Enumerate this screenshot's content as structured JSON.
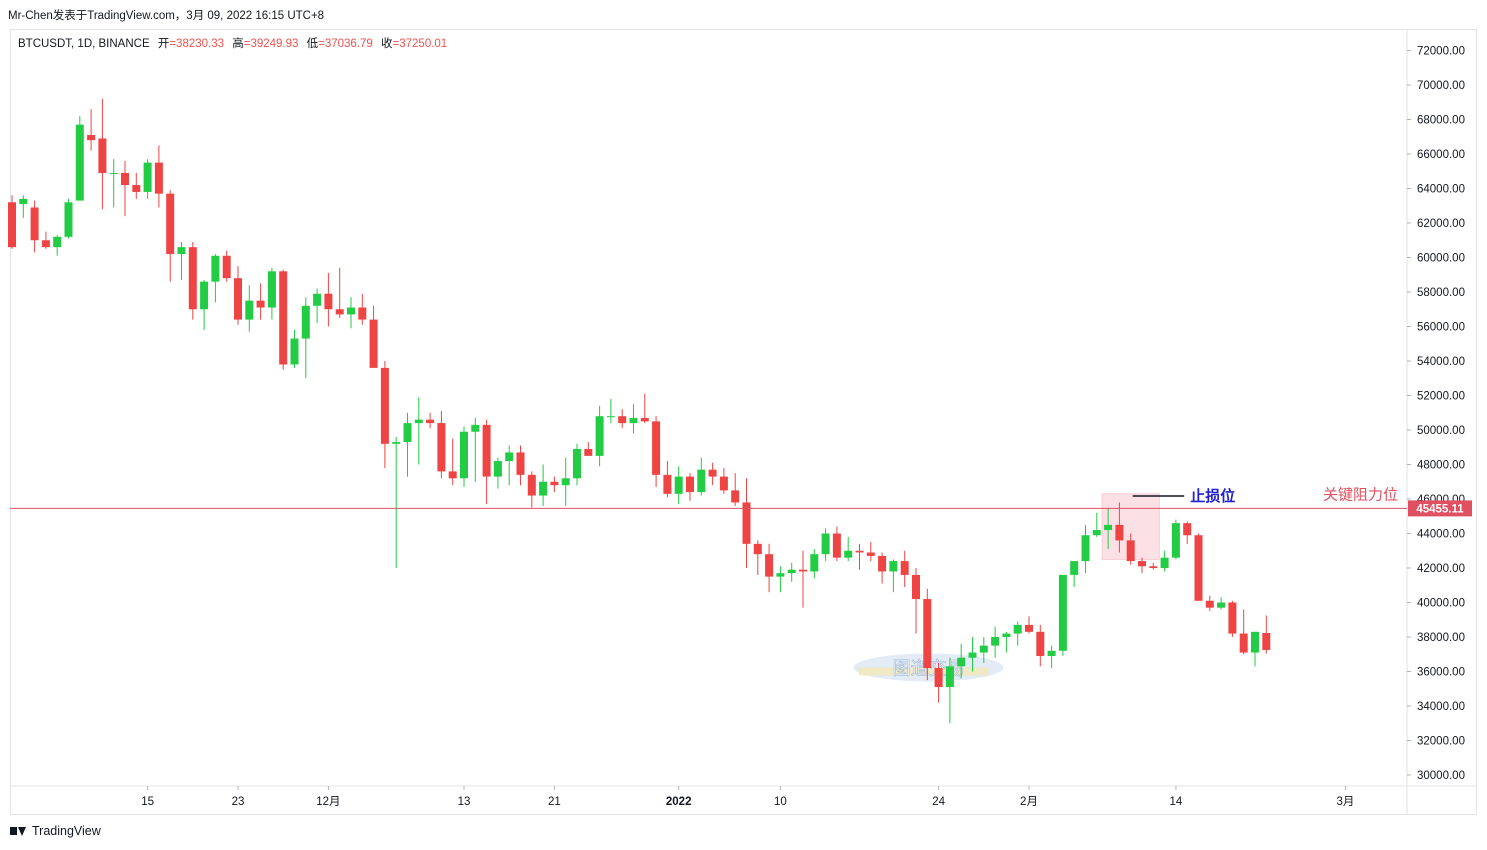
{
  "header": {
    "text": "Mr-Chen发表于TradingView.com，3月 09, 2022 16:15 UTC+8"
  },
  "legend": {
    "symbol": "BTCUSDT, 1D, BINANCE",
    "open_label": "开",
    "open_value": "=38230.33",
    "high_label": "高",
    "high_value": "=39249.93",
    "low_label": "低",
    "low_value": "=37036.79",
    "close_label": "收",
    "close_value": "=37250.01"
  },
  "footer": {
    "brand": "TradingView"
  },
  "colors": {
    "up": "#22cc44",
    "down": "#ef4444",
    "resistance": "#e05060",
    "stop": "#2020d0",
    "box_fill": "#f8c8d0"
  },
  "chart_data": {
    "type": "candlestick",
    "y_axis": {
      "min": 30000,
      "max": 72000,
      "step": 2000,
      "position": "right"
    },
    "y_tick_labels": [
      "72000.00",
      "70000.00",
      "68000.00",
      "66000.00",
      "64000.00",
      "62000.00",
      "60000.00",
      "58000.00",
      "56000.00",
      "54000.00",
      "52000.00",
      "50000.00",
      "48000.00",
      "46000.00",
      "44000.00",
      "42000.00",
      "40000.00",
      "38000.00",
      "36000.00",
      "34000.00",
      "32000.00",
      "30000.00"
    ],
    "x_tick_labels": [
      {
        "label": "15",
        "index": 12
      },
      {
        "label": "23",
        "index": 20
      },
      {
        "label": "12月",
        "index": 28
      },
      {
        "label": "13",
        "index": 40
      },
      {
        "label": "21",
        "index": 48
      },
      {
        "label": "2022",
        "index": 59
      },
      {
        "label": "10",
        "index": 68
      },
      {
        "label": "24",
        "index": 82
      },
      {
        "label": "2月",
        "index": 90
      },
      {
        "label": "14",
        "index": 103
      },
      {
        "label": "3月",
        "index": 118
      }
    ],
    "candles": [
      [
        63200,
        63600,
        60500,
        60600
      ],
      [
        63100,
        63600,
        62300,
        63400
      ],
      [
        62900,
        63300,
        60300,
        61000
      ],
      [
        61000,
        61500,
        60500,
        60600
      ],
      [
        60600,
        61300,
        60100,
        61200
      ],
      [
        61200,
        63400,
        61100,
        63200
      ],
      [
        63300,
        68200,
        63300,
        67700
      ],
      [
        67100,
        68600,
        66200,
        66800
      ],
      [
        66900,
        69200,
        62800,
        64900
      ],
      [
        64900,
        65700,
        62900,
        64900
      ],
      [
        64900,
        65600,
        62400,
        64200
      ],
      [
        64200,
        64900,
        63400,
        63800
      ],
      [
        63800,
        65700,
        63400,
        65500
      ],
      [
        65500,
        66500,
        62900,
        63700
      ],
      [
        63700,
        63900,
        58600,
        60200
      ],
      [
        60200,
        60900,
        58700,
        60600
      ],
      [
        60600,
        60900,
        56400,
        57000
      ],
      [
        57000,
        58700,
        55800,
        58600
      ],
      [
        58600,
        60200,
        57400,
        60100
      ],
      [
        60100,
        60400,
        58600,
        58800
      ],
      [
        58800,
        59500,
        56100,
        56400
      ],
      [
        56400,
        58400,
        55700,
        57500
      ],
      [
        57500,
        58500,
        56400,
        57100
      ],
      [
        57100,
        59400,
        56400,
        59200
      ],
      [
        59200,
        59300,
        53500,
        53800
      ],
      [
        53800,
        55800,
        53600,
        55300
      ],
      [
        55300,
        57700,
        53000,
        57200
      ],
      [
        57200,
        58200,
        56200,
        57900
      ],
      [
        57900,
        59100,
        56000,
        57000
      ],
      [
        57000,
        59400,
        56500,
        56700
      ],
      [
        56700,
        57700,
        55900,
        57100
      ],
      [
        57100,
        57900,
        56100,
        56400
      ],
      [
        56400,
        57200,
        53700,
        53600
      ],
      [
        53600,
        54000,
        47800,
        49200
      ],
      [
        49200,
        49600,
        42000,
        49300
      ],
      [
        49300,
        51000,
        47300,
        50400
      ],
      [
        50400,
        51900,
        48000,
        50600
      ],
      [
        50600,
        51000,
        50100,
        50400
      ],
      [
        50400,
        51100,
        47200,
        47600
      ],
      [
        47600,
        49500,
        46800,
        47200
      ],
      [
        47200,
        50200,
        46700,
        49900
      ],
      [
        49900,
        50700,
        47000,
        50300
      ],
      [
        50300,
        50600,
        45700,
        47300
      ],
      [
        47300,
        48400,
        46600,
        48200
      ],
      [
        48200,
        49100,
        46800,
        48700
      ],
      [
        48700,
        49100,
        46800,
        47400
      ],
      [
        47400,
        47600,
        45500,
        46200
      ],
      [
        46200,
        48000,
        45600,
        47000
      ],
      [
        47000,
        47300,
        46400,
        46800
      ],
      [
        46800,
        48400,
        45600,
        47200
      ],
      [
        47200,
        49200,
        46800,
        48900
      ],
      [
        48900,
        49300,
        48600,
        48500
      ],
      [
        48500,
        51400,
        47900,
        50800
      ],
      [
        50800,
        51800,
        50400,
        50800
      ],
      [
        50800,
        51200,
        50100,
        50400
      ],
      [
        50400,
        51500,
        49800,
        50700
      ],
      [
        50700,
        52100,
        50400,
        50500
      ],
      [
        50500,
        50800,
        46700,
        47400
      ],
      [
        47400,
        48200,
        46100,
        46300
      ],
      [
        46300,
        47900,
        45700,
        47300
      ],
      [
        47300,
        47500,
        45900,
        46400
      ],
      [
        46400,
        48400,
        46200,
        47700
      ],
      [
        47700,
        48100,
        46800,
        47300
      ],
      [
        47300,
        47800,
        46300,
        46500
      ],
      [
        46500,
        47500,
        45600,
        45800
      ],
      [
        45800,
        47200,
        42000,
        43400
      ],
      [
        43400,
        43600,
        41600,
        42800
      ],
      [
        42800,
        43400,
        40600,
        41500
      ],
      [
        41500,
        42100,
        40600,
        41700
      ],
      [
        41700,
        42300,
        41200,
        41900
      ],
      [
        41900,
        43000,
        39700,
        41800
      ],
      [
        41800,
        43100,
        41400,
        42800
      ],
      [
        42800,
        44300,
        42400,
        44000
      ],
      [
        44000,
        44400,
        42400,
        42600
      ],
      [
        42600,
        43800,
        42400,
        43000
      ],
      [
        43000,
        43400,
        41900,
        42900
      ],
      [
        42900,
        43500,
        42400,
        42700
      ],
      [
        42700,
        42900,
        41100,
        41800
      ],
      [
        41800,
        42500,
        40600,
        42400
      ],
      [
        42400,
        43000,
        40900,
        41600
      ],
      [
        41600,
        42000,
        38200,
        40200
      ],
      [
        40200,
        40800,
        35500,
        36200
      ],
      [
        36200,
        36500,
        34200,
        35100
      ],
      [
        35100,
        36800,
        33000,
        36300
      ],
      [
        36300,
        37600,
        35600,
        36800
      ],
      [
        36800,
        38000,
        36000,
        37100
      ],
      [
        37100,
        38000,
        36500,
        37500
      ],
      [
        37500,
        38600,
        36800,
        38000
      ],
      [
        38000,
        38300,
        37100,
        38200
      ],
      [
        38200,
        38900,
        37500,
        38700
      ],
      [
        38700,
        39200,
        38200,
        38300
      ],
      [
        38300,
        38700,
        36300,
        36900
      ],
      [
        36900,
        37500,
        36200,
        37200
      ],
      [
        37200,
        41600,
        36900,
        41600
      ],
      [
        41600,
        42000,
        40900,
        42400
      ],
      [
        42400,
        44500,
        41700,
        43900
      ],
      [
        43900,
        45200,
        43800,
        44200
      ],
      [
        44200,
        45500,
        43100,
        44500
      ],
      [
        44500,
        45800,
        42900,
        43600
      ],
      [
        43600,
        44000,
        42200,
        42400
      ],
      [
        42400,
        42600,
        41700,
        42100
      ],
      [
        42100,
        42300,
        41900,
        42000
      ],
      [
        42000,
        43000,
        41800,
        42600
      ],
      [
        42600,
        44800,
        42500,
        44600
      ],
      [
        44600,
        44700,
        43400,
        43900
      ],
      [
        43900,
        44000,
        40100,
        40100
      ],
      [
        40100,
        40400,
        39500,
        39700
      ],
      [
        39700,
        40300,
        39600,
        40000
      ],
      [
        40000,
        40100,
        38000,
        38200
      ],
      [
        38200,
        39600,
        37000,
        37100
      ],
      [
        37100,
        38300,
        36300,
        38300
      ],
      [
        38230,
        39250,
        37037,
        37250
      ]
    ],
    "annotations": [
      {
        "type": "horizontal_line",
        "price": 45455.11,
        "label": "关键阻力位",
        "price_label": "45455.11"
      },
      {
        "type": "text",
        "label": "止损位",
        "price": 46000
      },
      {
        "type": "rect",
        "from_index": 97,
        "to_index": 101,
        "price_top": 46300,
        "price_bottom": 42500
      }
    ],
    "watermark": "图道交易"
  }
}
